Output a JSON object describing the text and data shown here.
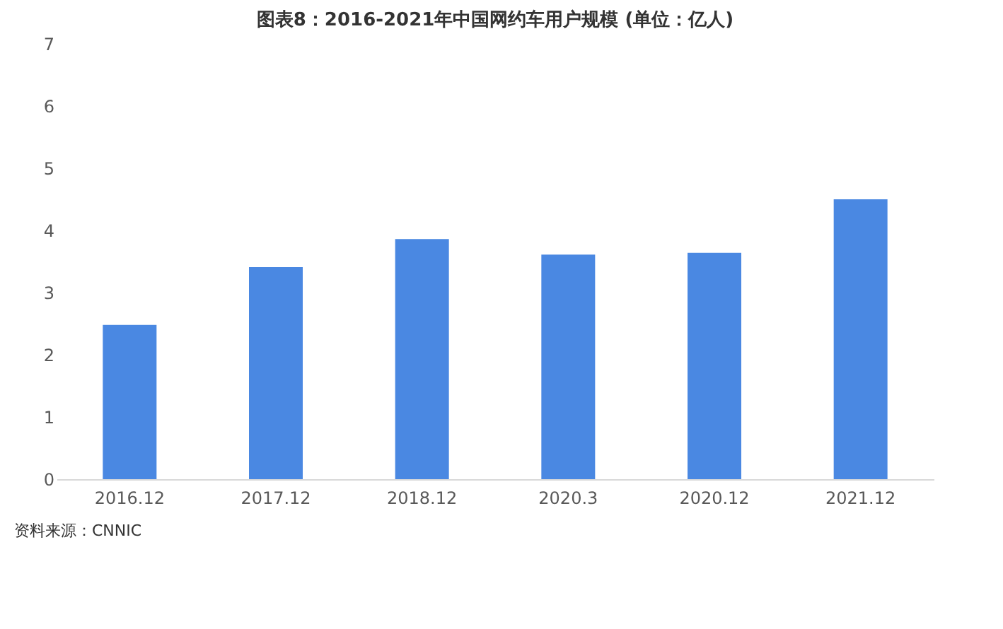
{
  "chart_data": {
    "type": "bar",
    "title": "图表8：2016-2021年中国网约车用户规模 (单位：亿人)",
    "categories": [
      "2016.12",
      "2017.12",
      "2018.12",
      "2020.3",
      "2020.12",
      "2021.12"
    ],
    "values": [
      2.48,
      3.41,
      3.86,
      3.61,
      3.64,
      4.5
    ],
    "color": "#4a88e2",
    "ylim": [
      0,
      7
    ],
    "yticks": [
      0,
      1,
      2,
      3,
      4,
      5,
      6,
      7
    ],
    "grid": false,
    "annotations": [
      "资料来源：CNNIC"
    ]
  }
}
